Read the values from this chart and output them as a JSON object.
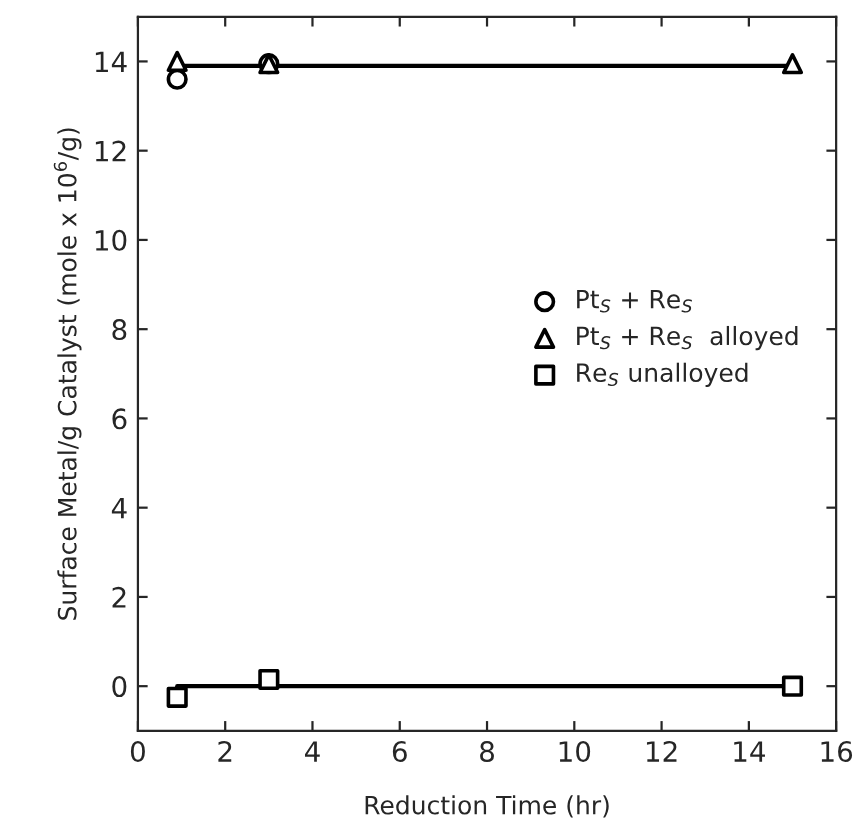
{
  "chart_data": {
    "type": "scatter",
    "xlabel": "Reduction Time (hr)",
    "ylabel": "Surface Metal/g Catalyst (mole x 10$^{6}$/g)",
    "xlim": [
      0,
      16
    ],
    "xticks": [
      0,
      2,
      4,
      6,
      8,
      10,
      12,
      14,
      16
    ],
    "ylim": [
      -1,
      15
    ],
    "yticks": [
      0,
      2,
      4,
      6,
      8,
      10,
      12,
      14
    ],
    "grid": false,
    "legend": "right",
    "series": [
      {
        "name": "Pt$_{S}$ + Re$_{S}$",
        "color": "#000000",
        "marker": "circle",
        "x": [
          0.9,
          3
        ],
        "values": [
          13.6,
          13.95
        ]
      },
      {
        "name": "Pt$_{S}$ + Re$_{S}$  alloyed",
        "color": "#000000",
        "marker": "triangle",
        "x": [
          0.9,
          3,
          15
        ],
        "values": [
          14.0,
          13.95,
          13.95
        ]
      },
      {
        "name": "Re$_{S}$ unalloyed",
        "color": "#000000",
        "marker": "square",
        "x": [
          0.9,
          3,
          15
        ],
        "values": [
          -0.25,
          0.15,
          0.0
        ]
      },
      {
        "type": "line",
        "color": "#000000",
        "marker": "none",
        "line_style": "solid",
        "x": [
          0.9,
          15
        ],
        "values": [
          13.9,
          13.9
        ]
      },
      {
        "type": "line",
        "color": "#000000",
        "marker": "none",
        "line_style": "solid",
        "x": [
          0.9,
          15
        ],
        "values": [
          0.0,
          0.0
        ]
      }
    ]
  }
}
